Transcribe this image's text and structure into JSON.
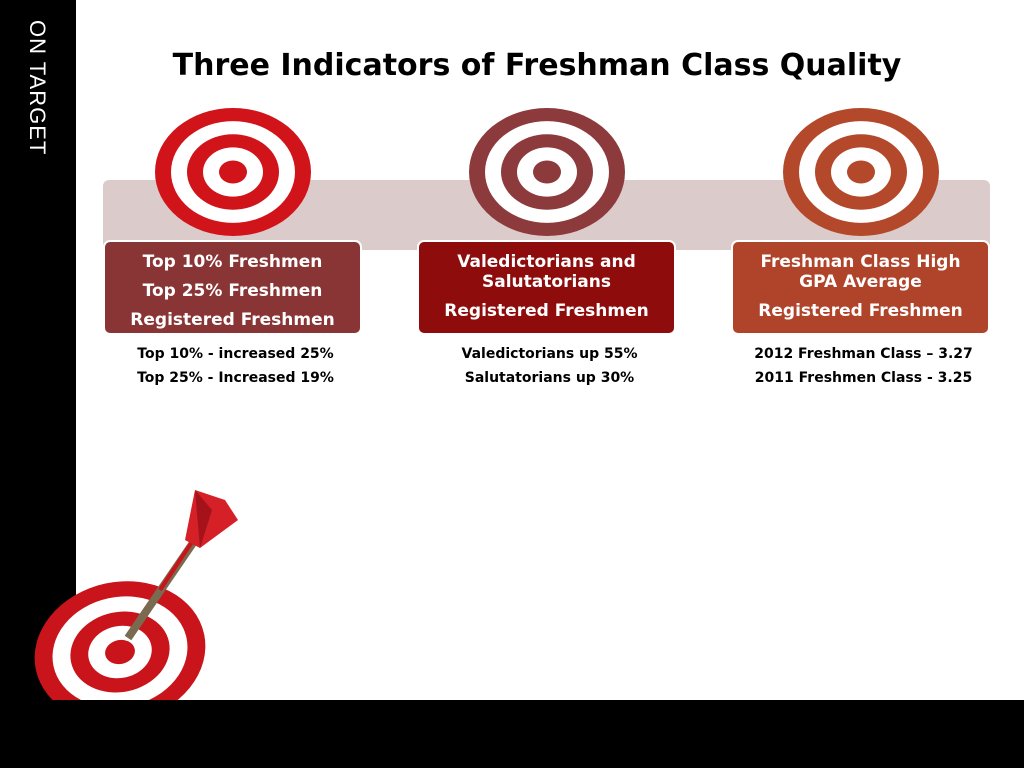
{
  "sidebar_label": "ON TARGET",
  "title": "Three Indicators of Freshman Class Quality",
  "indicators": [
    {
      "lines": [
        "Top 10% Freshmen",
        "Top 25% Freshmen",
        "Registered Freshmen"
      ],
      "notes": [
        "Top 10% - increased 25%",
        "Top 25%  - Increased 19%"
      ]
    },
    {
      "lines": [
        "Valedictorians and Salutatorians",
        "Registered Freshmen"
      ],
      "notes": [
        "Valedictorians up 55%",
        "Salutatorians up 30%"
      ]
    },
    {
      "lines": [
        "Freshman Class High GPA Average",
        "Registered Freshmen"
      ],
      "notes": [
        "2012 Freshman Class – 3.27",
        "2011 Freshmen Class - 3.25"
      ]
    }
  ]
}
